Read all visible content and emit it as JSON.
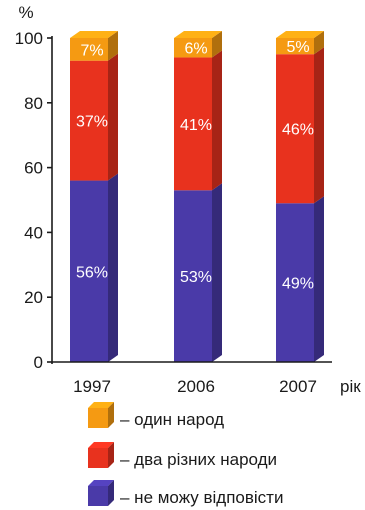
{
  "chart_data": {
    "type": "bar",
    "stacked": true,
    "unit_label": "%",
    "xlabel": "рік",
    "ylabel": "",
    "ylim": [
      0,
      100
    ],
    "yticks": [
      0,
      20,
      40,
      60,
      80,
      100
    ],
    "categories": [
      "1997",
      "2006",
      "2007"
    ],
    "series": [
      {
        "name": "не можу відповісти",
        "values": [
          56,
          53,
          49
        ],
        "labels": [
          "56%",
          "53%",
          "49%"
        ],
        "color": "#4a3aa8"
      },
      {
        "name": "два різних народи",
        "values": [
          37,
          41,
          46
        ],
        "labels": [
          "37%",
          "41%",
          "46%"
        ],
        "color": "#e8321e"
      },
      {
        "name": "один народ",
        "values": [
          7,
          6,
          5
        ],
        "labels": [
          "7%",
          "6%",
          "5%"
        ],
        "color": "#f59a12"
      }
    ],
    "legend": {
      "placement": "bottom",
      "entries": [
        "– один народ",
        "– два різних народи",
        "– не можу відповісти"
      ],
      "colors": [
        "#f59a12",
        "#e8321e",
        "#4a3aa8"
      ]
    }
  }
}
